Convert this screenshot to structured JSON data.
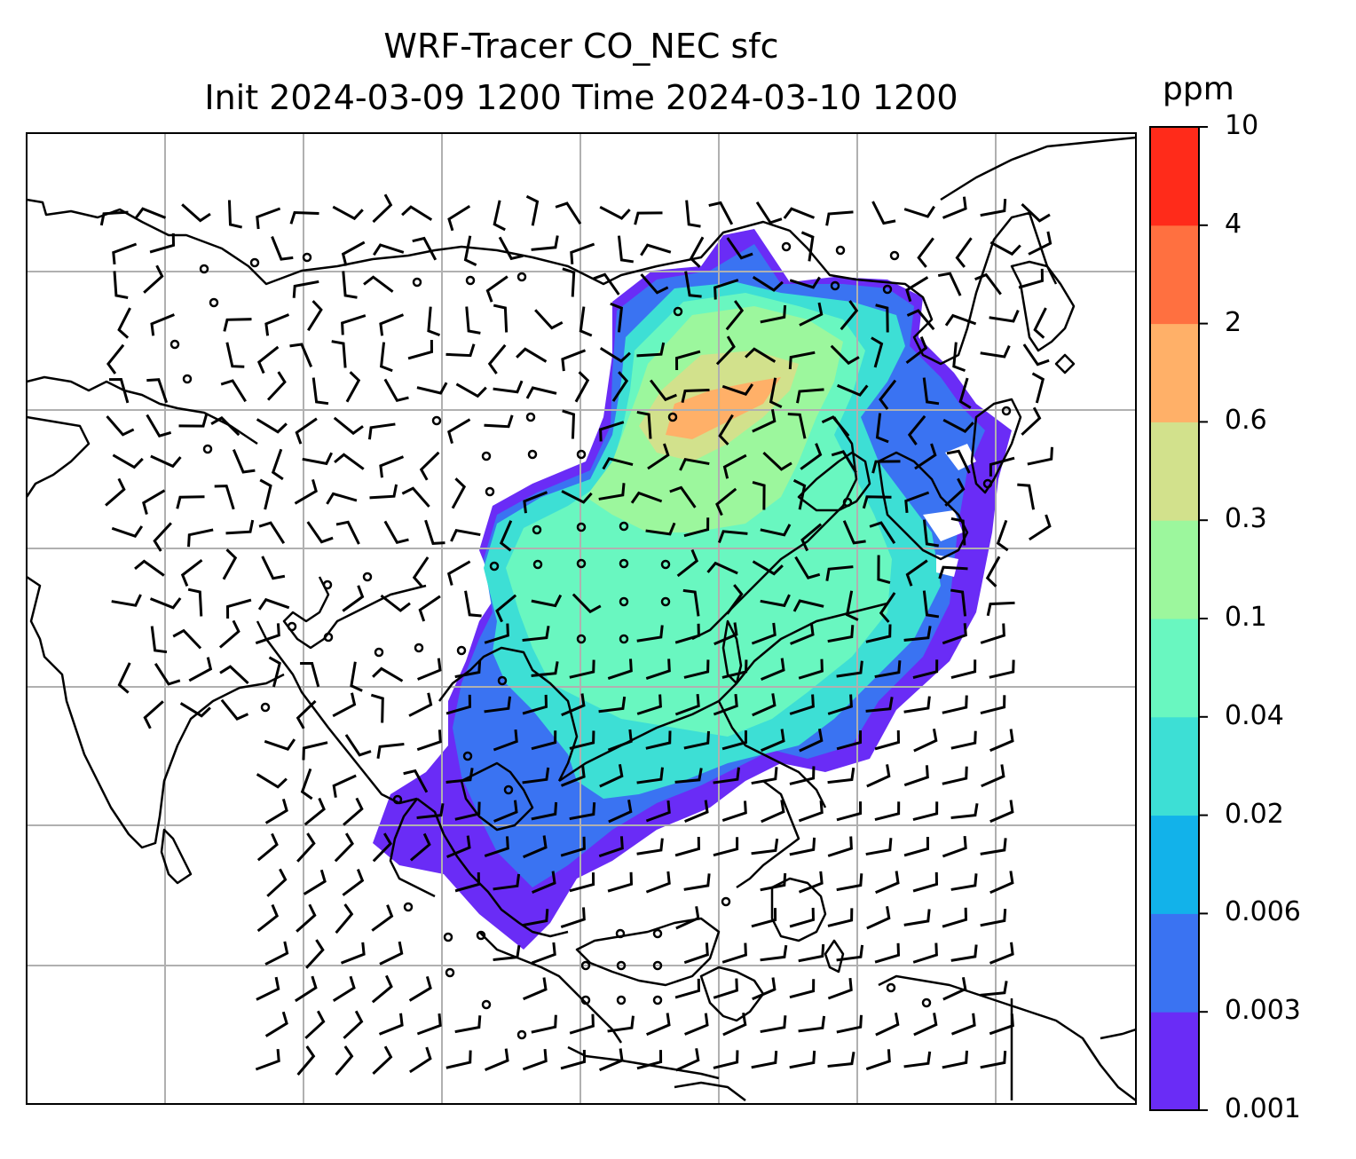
{
  "title_line1": "WRF-Tracer CO_NEC sfc",
  "title_line2": "Init 2024-03-09 1200 Time 2024-03-10 1200",
  "colorbar": {
    "unit": "ppm",
    "ticks": [
      "0.001",
      "0.003",
      "0.006",
      "0.02",
      "0.04",
      "0.1",
      "0.3",
      "0.6",
      "2",
      "4",
      "10"
    ],
    "colors": [
      "#6a2cf6",
      "#3a73f2",
      "#12b2ea",
      "#3ddfd5",
      "#69f7c0",
      "#9cf79d",
      "#d2e18c",
      "#ffb068",
      "#ff7040",
      "#ff2b1a"
    ]
  },
  "map": {
    "colors": {
      "frame": "#000000",
      "grid": "#b0b0b0",
      "coast": "#000000",
      "barb": "#000000"
    }
  }
}
